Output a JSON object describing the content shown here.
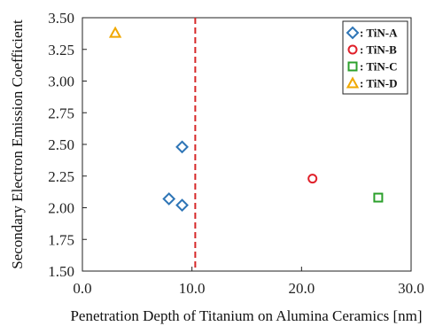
{
  "chart_data": {
    "type": "scatter",
    "title": "",
    "xlabel": "Penetration Depth of Titanium on Alumina Ceramics [nm]",
    "ylabel": "Secondary Electron Emission Coefficient",
    "xlim": [
      0,
      30
    ],
    "ylim": [
      1.5,
      3.5
    ],
    "x_ticks": [
      0,
      10,
      20,
      30
    ],
    "x_tick_labels": [
      "0.0",
      "10.0",
      "20.0",
      "30.0"
    ],
    "y_ticks": [
      1.5,
      1.75,
      2.0,
      2.25,
      2.5,
      2.75,
      3.0,
      3.25,
      3.5
    ],
    "y_tick_labels": [
      "1.50",
      "1.75",
      "2.00",
      "2.25",
      "2.50",
      "2.75",
      "3.00",
      "3.25",
      "3.50"
    ],
    "grid": false,
    "legend_position": "top-right",
    "reference_line": {
      "x": 10.3,
      "style": "dashed",
      "color": "#d62728"
    },
    "series": [
      {
        "name": ": TiN-A",
        "marker": "diamond",
        "color": "#2e75b6",
        "points": [
          {
            "x": 9.1,
            "y": 2.48
          },
          {
            "x": 7.9,
            "y": 2.07
          },
          {
            "x": 9.1,
            "y": 2.02
          }
        ]
      },
      {
        "name": ": TiN-B",
        "marker": "circle",
        "color": "#e0202a",
        "points": [
          {
            "x": 21.0,
            "y": 2.23
          }
        ]
      },
      {
        "name": ": TiN-C",
        "marker": "square",
        "color": "#2ca02c",
        "points": [
          {
            "x": 27.0,
            "y": 2.08
          }
        ]
      },
      {
        "name": ": TiN-D",
        "marker": "triangle",
        "color": "#f0a800",
        "points": [
          {
            "x": 3.0,
            "y": 3.38
          }
        ]
      }
    ]
  }
}
